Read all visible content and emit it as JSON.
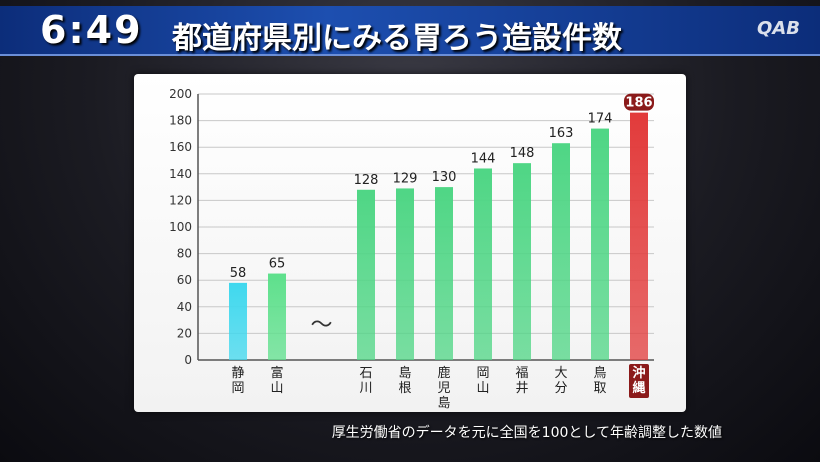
{
  "header": {
    "clock": "6:49",
    "title": "都道府県別にみる胃ろう造設件数",
    "logo": "QAB"
  },
  "footnote": "厚生労働省のデータを元に全国を100として年齢調整した数値",
  "break_symbol": "〜",
  "chart_data": {
    "type": "bar",
    "title": "都道府県別にみる胃ろう造設件数",
    "xlabel": "",
    "ylabel": "",
    "ylim": [
      0,
      200
    ],
    "yticks": [
      0,
      20,
      40,
      60,
      80,
      100,
      120,
      140,
      160,
      180,
      200
    ],
    "grid": true,
    "axis_break_after_index": 1,
    "categories": [
      "静岡",
      "富山",
      "石川",
      "島根",
      "鹿児島",
      "岡山",
      "福井",
      "大分",
      "鳥取",
      "沖縄"
    ],
    "values": [
      58,
      65,
      128,
      129,
      130,
      144,
      148,
      163,
      174,
      186
    ],
    "bar_colors": [
      "#3fd8ee",
      "#5ee08c",
      "#4fd685",
      "#4fd685",
      "#4fd685",
      "#4fd685",
      "#4fd685",
      "#4fd685",
      "#4fd685",
      "#e23b3b"
    ],
    "highlight": "沖縄",
    "highlight_color": "#8b1a1a"
  }
}
